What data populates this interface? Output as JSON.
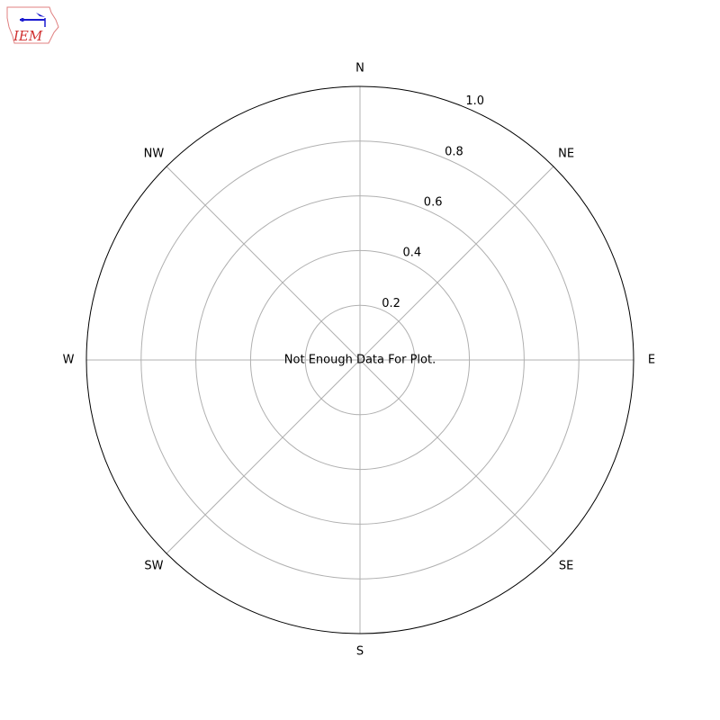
{
  "logo": {
    "text": "IEM"
  },
  "chart_data": {
    "type": "polar",
    "direction_labels": [
      "N",
      "NE",
      "E",
      "SE",
      "S",
      "SW",
      "W",
      "NW"
    ],
    "radial_ticks": [
      "0.2",
      "0.4",
      "0.6",
      "0.8",
      "1.0"
    ],
    "radial_tick_values": [
      0.2,
      0.4,
      0.6,
      0.8,
      1.0
    ],
    "rlim": [
      0,
      1.0
    ],
    "grid": true,
    "series": [],
    "annotation": "Not Enough Data For Plot."
  },
  "colors": {
    "grid": "#b0b0b0",
    "frame": "#000000",
    "logo_red": "#d03030",
    "logo_blue": "#1a1ad0"
  }
}
